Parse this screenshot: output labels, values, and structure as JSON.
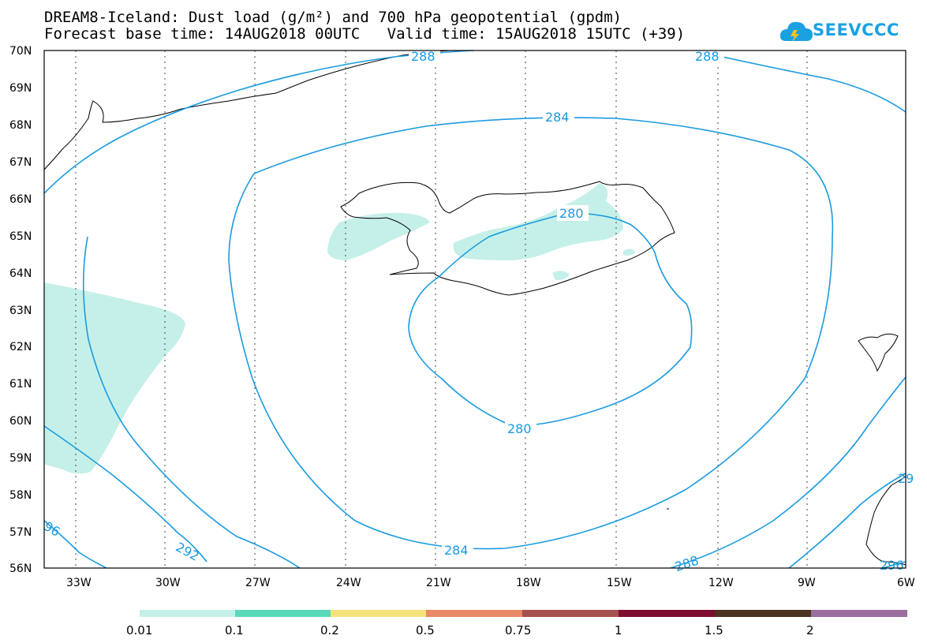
{
  "header": {
    "title_line1": "DREAM8-Iceland: Dust load (g/m²) and 700 hPa geopotential (gpdm)",
    "title_line2": "Forecast base time: 14AUG2018 00UTC   Valid time: 15AUG2018 15UTC (+39)"
  },
  "logo": {
    "text": "SEEVCCC",
    "icon": "cloud-icon",
    "color": "#1ba1e2"
  },
  "map": {
    "lat_labels": [
      "70N",
      "69N",
      "68N",
      "67N",
      "66N",
      "65N",
      "64N",
      "63N",
      "62N",
      "61N",
      "60N",
      "59N",
      "58N",
      "57N",
      "56N"
    ],
    "lon_labels": [
      "33W",
      "30W",
      "27W",
      "24W",
      "21W",
      "18W",
      "15W",
      "12W",
      "9W",
      "6W"
    ],
    "contour_color": "#1a9be0",
    "dust_fill_color": "#c5f0e9",
    "contour_labels": {
      "c280_top": "280",
      "c280_bottom": "280",
      "c284_top": "284",
      "c284_bottom": "284",
      "c288_top_left": "288",
      "c288_top_right": "288",
      "c288_bottom": "288",
      "c292": "292",
      "c296_left": "96",
      "c296_right": "296",
      "c29_edge": "29"
    }
  },
  "colorbar": {
    "colors": [
      "#c5f0e9",
      "#5ad9b8",
      "#f4e37a",
      "#e88a66",
      "#a5524d",
      "#7e0c2f",
      "#4a3321",
      "#9a6e9e"
    ],
    "labels": [
      "0.01",
      "0.1",
      "0.2",
      "0.5",
      "0.75",
      "1",
      "1.5",
      "2"
    ]
  }
}
